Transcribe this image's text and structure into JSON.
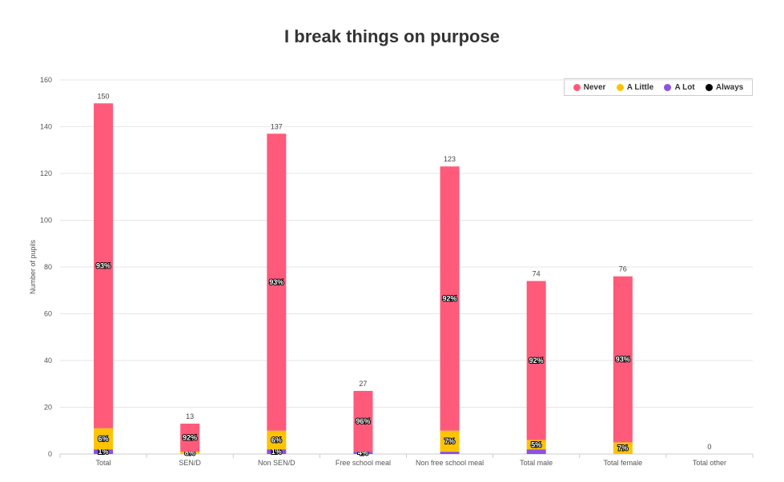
{
  "chart_data": {
    "type": "bar",
    "stacked": true,
    "title": "I break things on purpose",
    "ylabel": "Number of pupils",
    "xlabel": "",
    "ylim": [
      0,
      160
    ],
    "yticks": [
      0,
      20,
      40,
      60,
      80,
      100,
      120,
      140,
      160
    ],
    "grid": true,
    "legend_position": "top-right",
    "categories": [
      "Total",
      "SEN/D",
      "Non SEN/D",
      "Free school meal",
      "Non free school meal",
      "Total male",
      "Total female",
      "Total other"
    ],
    "totals": [
      150,
      13,
      137,
      27,
      123,
      74,
      76,
      0
    ],
    "series": [
      {
        "name": "Never",
        "color": "#ff5a7a",
        "values": [
          139,
          12,
          127,
          26,
          113,
          68,
          71,
          0
        ],
        "labels": [
          "93%",
          "92%",
          "93%",
          "96%",
          "92%",
          "92%",
          "93%",
          ""
        ]
      },
      {
        "name": "A Little",
        "color": "#ffc400",
        "values": [
          9,
          1,
          8,
          0,
          9,
          4,
          5,
          0
        ],
        "labels": [
          "6%",
          "8%",
          "6%",
          "",
          "7%",
          "5%",
          "7%",
          ""
        ]
      },
      {
        "name": "A Lot",
        "color": "#8c52e0",
        "values": [
          2,
          0,
          2,
          1,
          1,
          2,
          0,
          0
        ],
        "labels": [
          "1%",
          "",
          "1%",
          "4%",
          "",
          "",
          "",
          ""
        ]
      },
      {
        "name": "Always",
        "color": "#000000",
        "values": [
          0,
          0,
          0,
          0,
          0,
          0,
          0,
          0
        ],
        "labels": [
          "",
          "",
          "",
          "",
          "",
          "",
          "",
          ""
        ]
      }
    ]
  }
}
